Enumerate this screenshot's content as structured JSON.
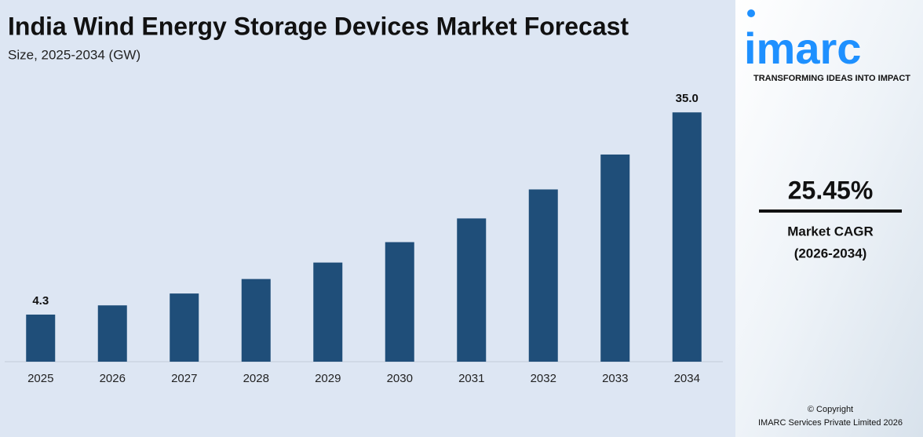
{
  "chart_data": {
    "type": "bar",
    "title": "India Wind Energy Storage Devices Market Forecast",
    "subtitle": "Size, 2025-2034 (GW)",
    "categories": [
      "2025",
      "2026",
      "2027",
      "2028",
      "2029",
      "2030",
      "2031",
      "2032",
      "2033",
      "2034"
    ],
    "values": [
      4.3,
      5.7,
      7.5,
      9.7,
      12.2,
      15.3,
      18.9,
      23.3,
      28.6,
      35.0
    ],
    "value_labels": [
      "4.3",
      null,
      null,
      null,
      null,
      null,
      null,
      null,
      null,
      "35.0"
    ],
    "color": "#1f4e79",
    "ylim": [
      -2.85,
      40.15
    ],
    "grid": false
  },
  "sidebar": {
    "logo": "imarc",
    "tagline": "TRANSFORMING IDEAS INTO IMPACT",
    "cagr": "25.45%",
    "cagr_label": "Market CAGR",
    "cagr_period": "(2026-2034)",
    "copyright": "© Copyright",
    "company": "IMARC Services Private Limited 2026"
  }
}
